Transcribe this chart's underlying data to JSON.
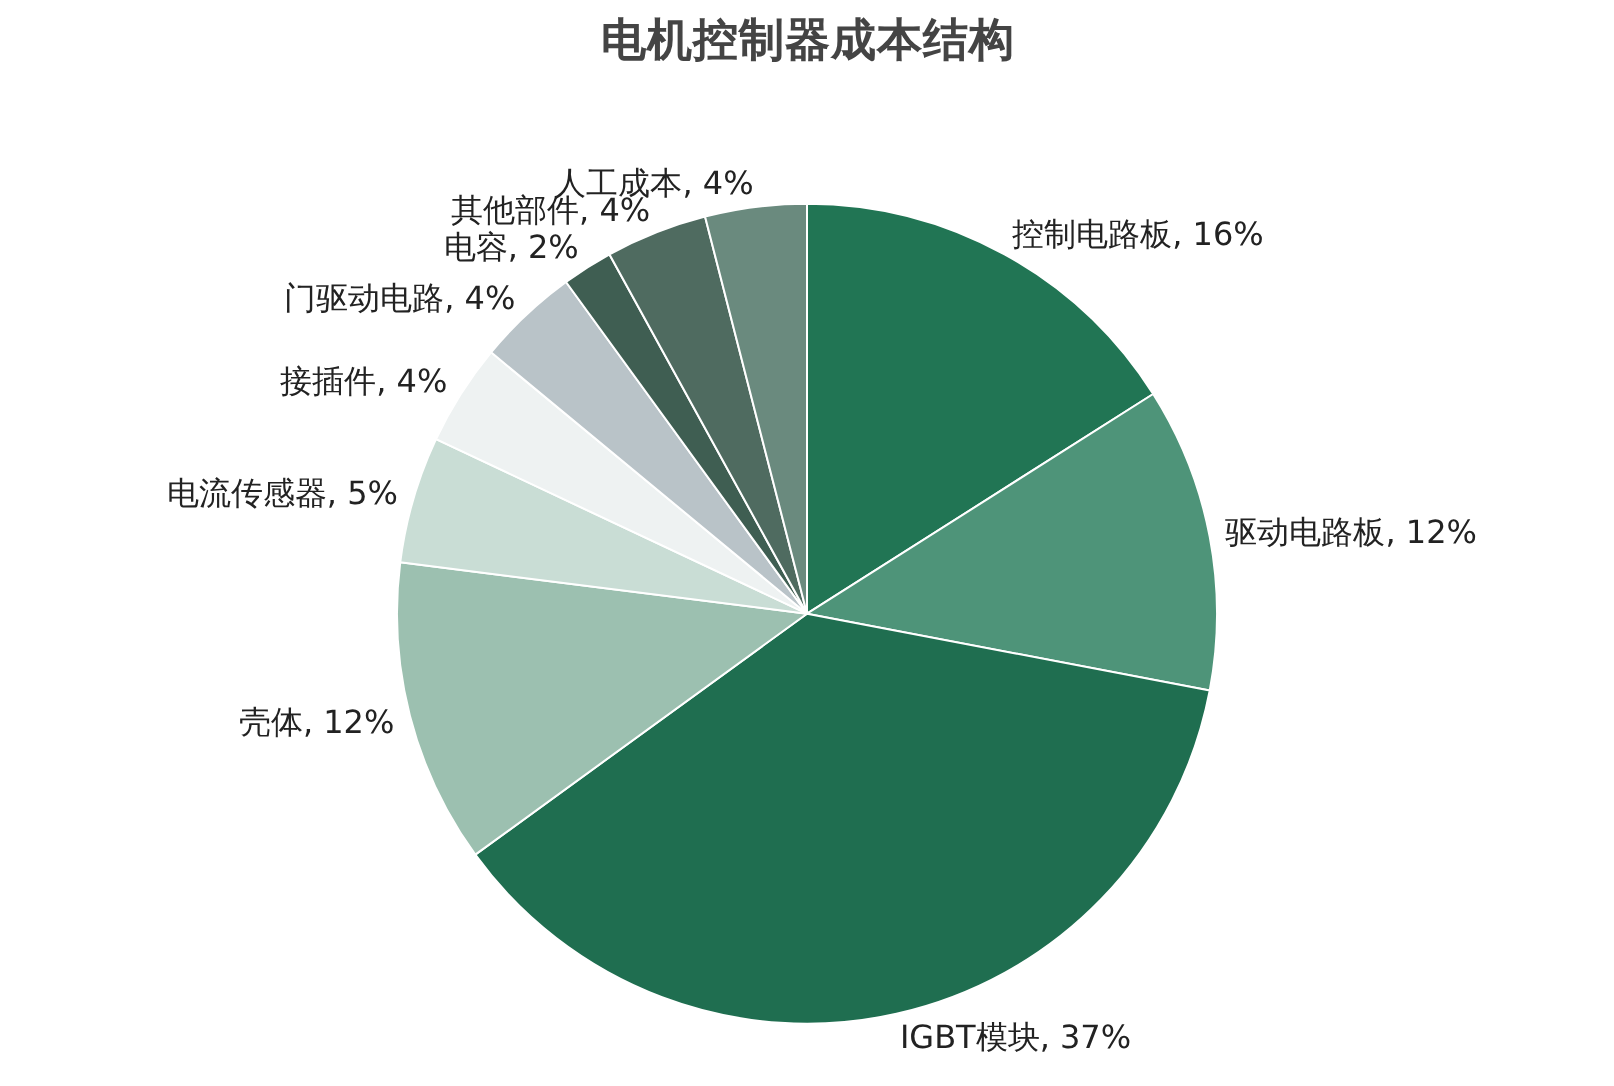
{
  "chart_data": {
    "type": "pie",
    "title": "电机控制器成本结构",
    "categories": [
      "控制电路板",
      "驱动电路板",
      "IGBT模块",
      "壳体",
      "电流传感器",
      "接插件",
      "门驱动电路",
      "电容",
      "其他部件",
      "人工成本"
    ],
    "values": [
      16,
      12,
      37,
      12,
      5,
      4,
      4,
      2,
      4,
      4
    ],
    "value_labels": [
      "16%",
      "12%",
      "37%",
      "12%",
      "5%",
      "4%",
      "4%",
      "2%",
      "4%",
      "4%"
    ],
    "colors": [
      "#217554",
      "#4e9479",
      "#1f6e50",
      "#9cc0b0",
      "#c9ddd5",
      "#eef2f2",
      "#b9c3c8",
      "#3f5e52",
      "#4f6b60",
      "#6a8a7e"
    ],
    "legend": false
  }
}
